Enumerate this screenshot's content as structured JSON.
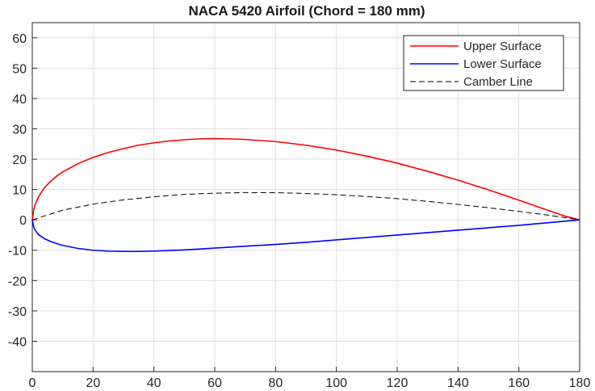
{
  "chart_data": {
    "type": "line",
    "title": "NACA 5420 Airfoil (Chord = 180 mm)",
    "xlabel": "",
    "ylabel": "",
    "xlim": [
      0,
      180
    ],
    "ylim": [
      -50,
      65
    ],
    "xticks": [
      0,
      20,
      40,
      60,
      80,
      100,
      120,
      140,
      160,
      180
    ],
    "yticks": [
      -40,
      -30,
      -20,
      -10,
      0,
      10,
      20,
      30,
      40,
      50,
      60
    ],
    "grid": true,
    "legend_position": "top-right",
    "series": [
      {
        "name": "Upper Surface",
        "color": "#ff0000",
        "style": "solid",
        "x": [
          0,
          0.5,
          1,
          2,
          4,
          6,
          8,
          10,
          15,
          20,
          25,
          30,
          35,
          40,
          45,
          50,
          55,
          60,
          65,
          70,
          80,
          90,
          100,
          110,
          120,
          130,
          140,
          150,
          160,
          170,
          175,
          180
        ],
        "y": [
          0,
          3.5,
          5.2,
          7.5,
          10.6,
          12.7,
          14.4,
          15.8,
          18.5,
          20.6,
          22.2,
          23.5,
          24.6,
          25.4,
          26.0,
          26.4,
          26.7,
          26.8,
          26.7,
          26.5,
          25.8,
          24.6,
          23.0,
          21.0,
          18.7,
          16.0,
          13.1,
          9.9,
          6.5,
          3.0,
          1.3,
          0
        ]
      },
      {
        "name": "Lower Surface",
        "color": "#0000ff",
        "style": "solid",
        "x": [
          0,
          0.5,
          1,
          2,
          4,
          6,
          8,
          10,
          15,
          20,
          25,
          30,
          35,
          40,
          45,
          50,
          60,
          70,
          80,
          90,
          100,
          110,
          120,
          130,
          140,
          150,
          160,
          170,
          180
        ],
        "y": [
          0,
          -2.5,
          -3.5,
          -4.8,
          -6.2,
          -7.1,
          -7.8,
          -8.4,
          -9.4,
          -10.0,
          -10.3,
          -10.4,
          -10.4,
          -10.3,
          -10.1,
          -9.9,
          -9.3,
          -8.7,
          -8.1,
          -7.4,
          -6.6,
          -5.8,
          -5.0,
          -4.2,
          -3.4,
          -2.6,
          -1.8,
          -0.9,
          0
        ]
      },
      {
        "name": "Camber Line",
        "color": "#000000",
        "style": "dashed",
        "x": [
          0,
          10,
          20,
          30,
          40,
          50,
          60,
          70,
          80,
          90,
          100,
          110,
          120,
          130,
          140,
          150,
          160,
          170,
          180
        ],
        "y": [
          0,
          3.2,
          5.2,
          6.6,
          7.6,
          8.4,
          8.8,
          9.0,
          8.95,
          8.7,
          8.3,
          7.7,
          7.0,
          6.1,
          5.1,
          4.0,
          2.8,
          1.5,
          0
        ]
      }
    ]
  }
}
